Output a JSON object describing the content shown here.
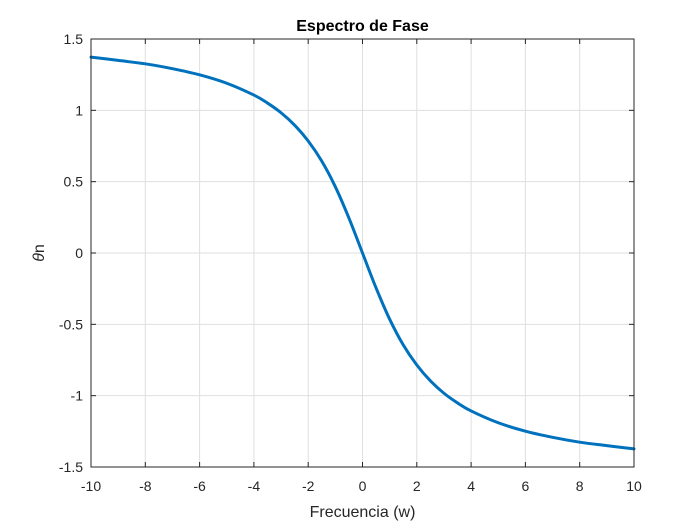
{
  "chart_data": {
    "type": "line",
    "title": "Espectro de Fase",
    "xlabel": "Frecuencia (w)",
    "ylabel_symbol": "θ",
    "ylabel_suffix": "n",
    "xlim": [
      -10,
      10
    ],
    "ylim": [
      -1.5,
      1.5
    ],
    "xticks": [
      -10,
      -8,
      -6,
      -4,
      -2,
      0,
      2,
      4,
      6,
      8,
      10
    ],
    "xtick_labels": [
      "-10",
      "-8",
      "-6",
      "-4",
      "-2",
      "0",
      "2",
      "4",
      "6",
      "8",
      "10"
    ],
    "yticks": [
      1.5,
      1,
      0.5,
      0,
      -0.5,
      -1,
      -1.5
    ],
    "ytick_labels": [
      "1.5",
      "1",
      "0.5",
      "0",
      "-0.5",
      "-1",
      "-1.5"
    ],
    "grid": true,
    "series": [
      {
        "color": "#0072BD",
        "x": [
          -10,
          -9,
          -8,
          -7,
          -6,
          -5,
          -4,
          -3.5,
          -3,
          -2.5,
          -2,
          -1.5,
          -1,
          -0.5,
          0,
          0.5,
          1,
          1.5,
          2,
          2.5,
          3,
          3.5,
          4,
          5,
          6,
          7,
          8,
          9,
          10
        ],
        "y": [
          1.373,
          1.35,
          1.326,
          1.292,
          1.249,
          1.19,
          1.107,
          1.051,
          0.983,
          0.896,
          0.785,
          0.644,
          0.464,
          0.245,
          0,
          -0.245,
          -0.464,
          -0.644,
          -0.785,
          -0.896,
          -0.983,
          -1.051,
          -1.107,
          -1.19,
          -1.249,
          -1.292,
          -1.326,
          -1.35,
          -1.373
        ]
      }
    ]
  }
}
